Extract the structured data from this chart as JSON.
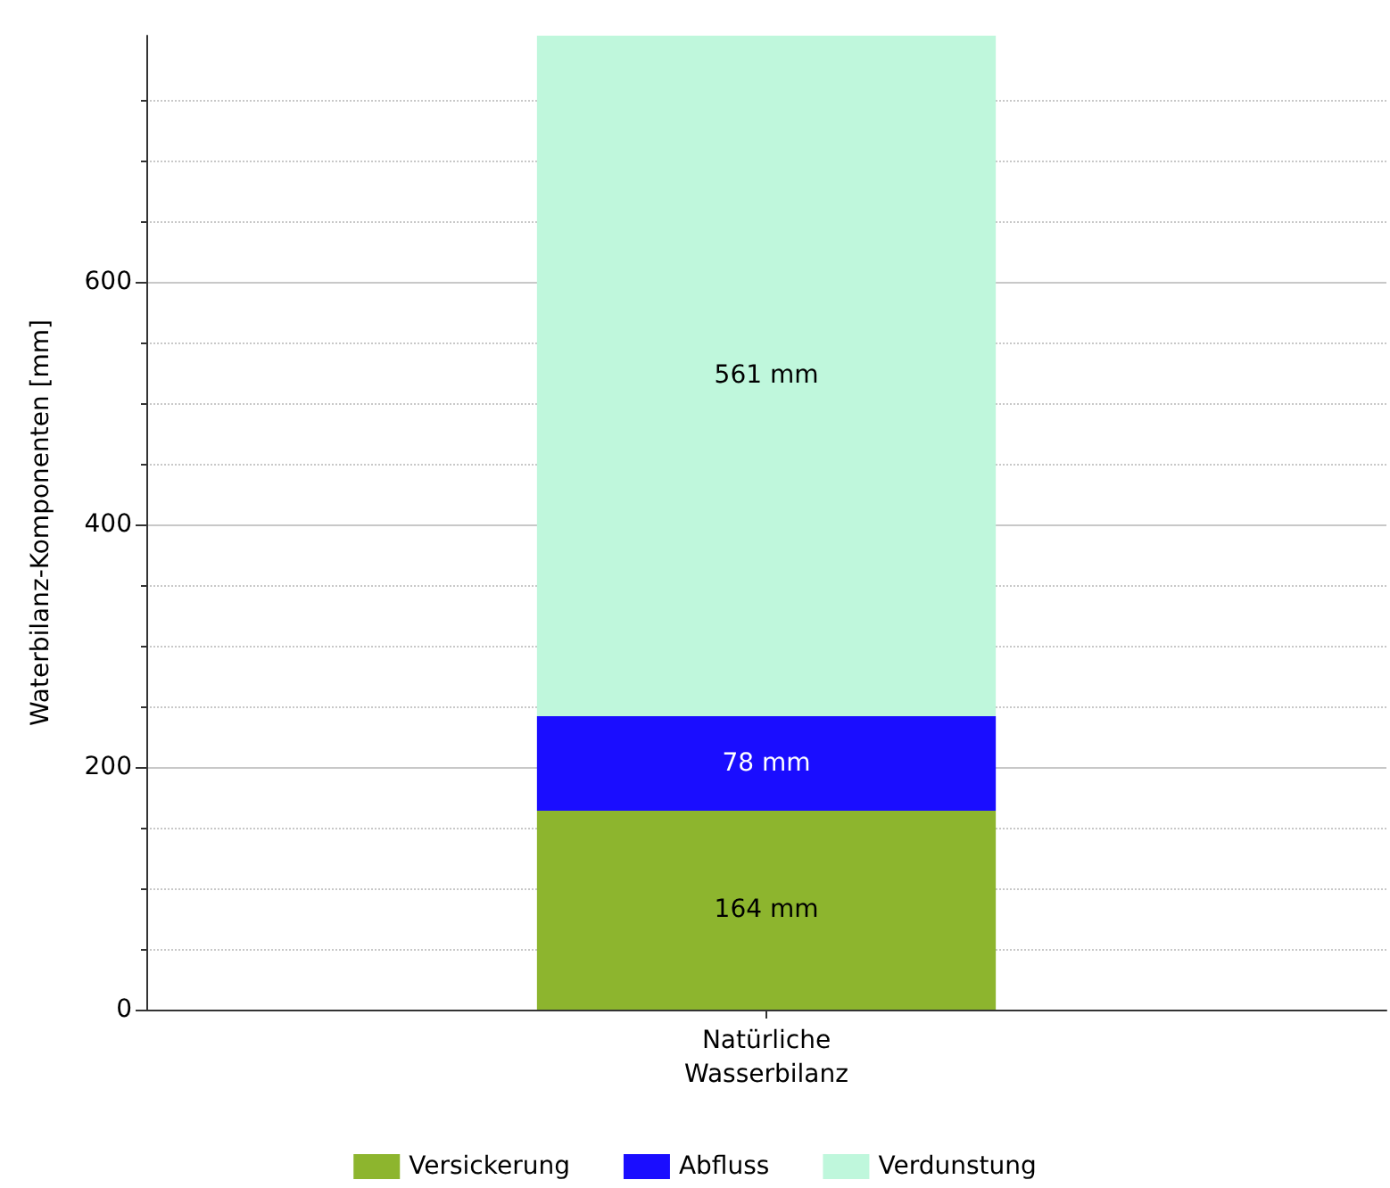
{
  "chart_data": {
    "type": "bar",
    "stacked": true,
    "ylabel": "Waterbilanz-Komponenten [mm]",
    "categories": [
      "Natürliche\nWasserbilanz"
    ],
    "series": [
      {
        "name": "Versickerung",
        "color": "#8db52e",
        "values": [
          164
        ],
        "value_labels": [
          "164 mm"
        ]
      },
      {
        "name": "Abfluss",
        "color": "#1a0dff",
        "values": [
          78
        ],
        "value_labels": [
          "78 mm"
        ]
      },
      {
        "name": "Verdunstung",
        "color": "#bff7dc",
        "values": [
          561
        ],
        "value_labels": [
          "561 mm"
        ]
      }
    ],
    "ylim": [
      0,
      803
    ],
    "yticks": [
      0,
      200,
      400,
      600
    ],
    "grid": true,
    "legend": "bottom"
  }
}
